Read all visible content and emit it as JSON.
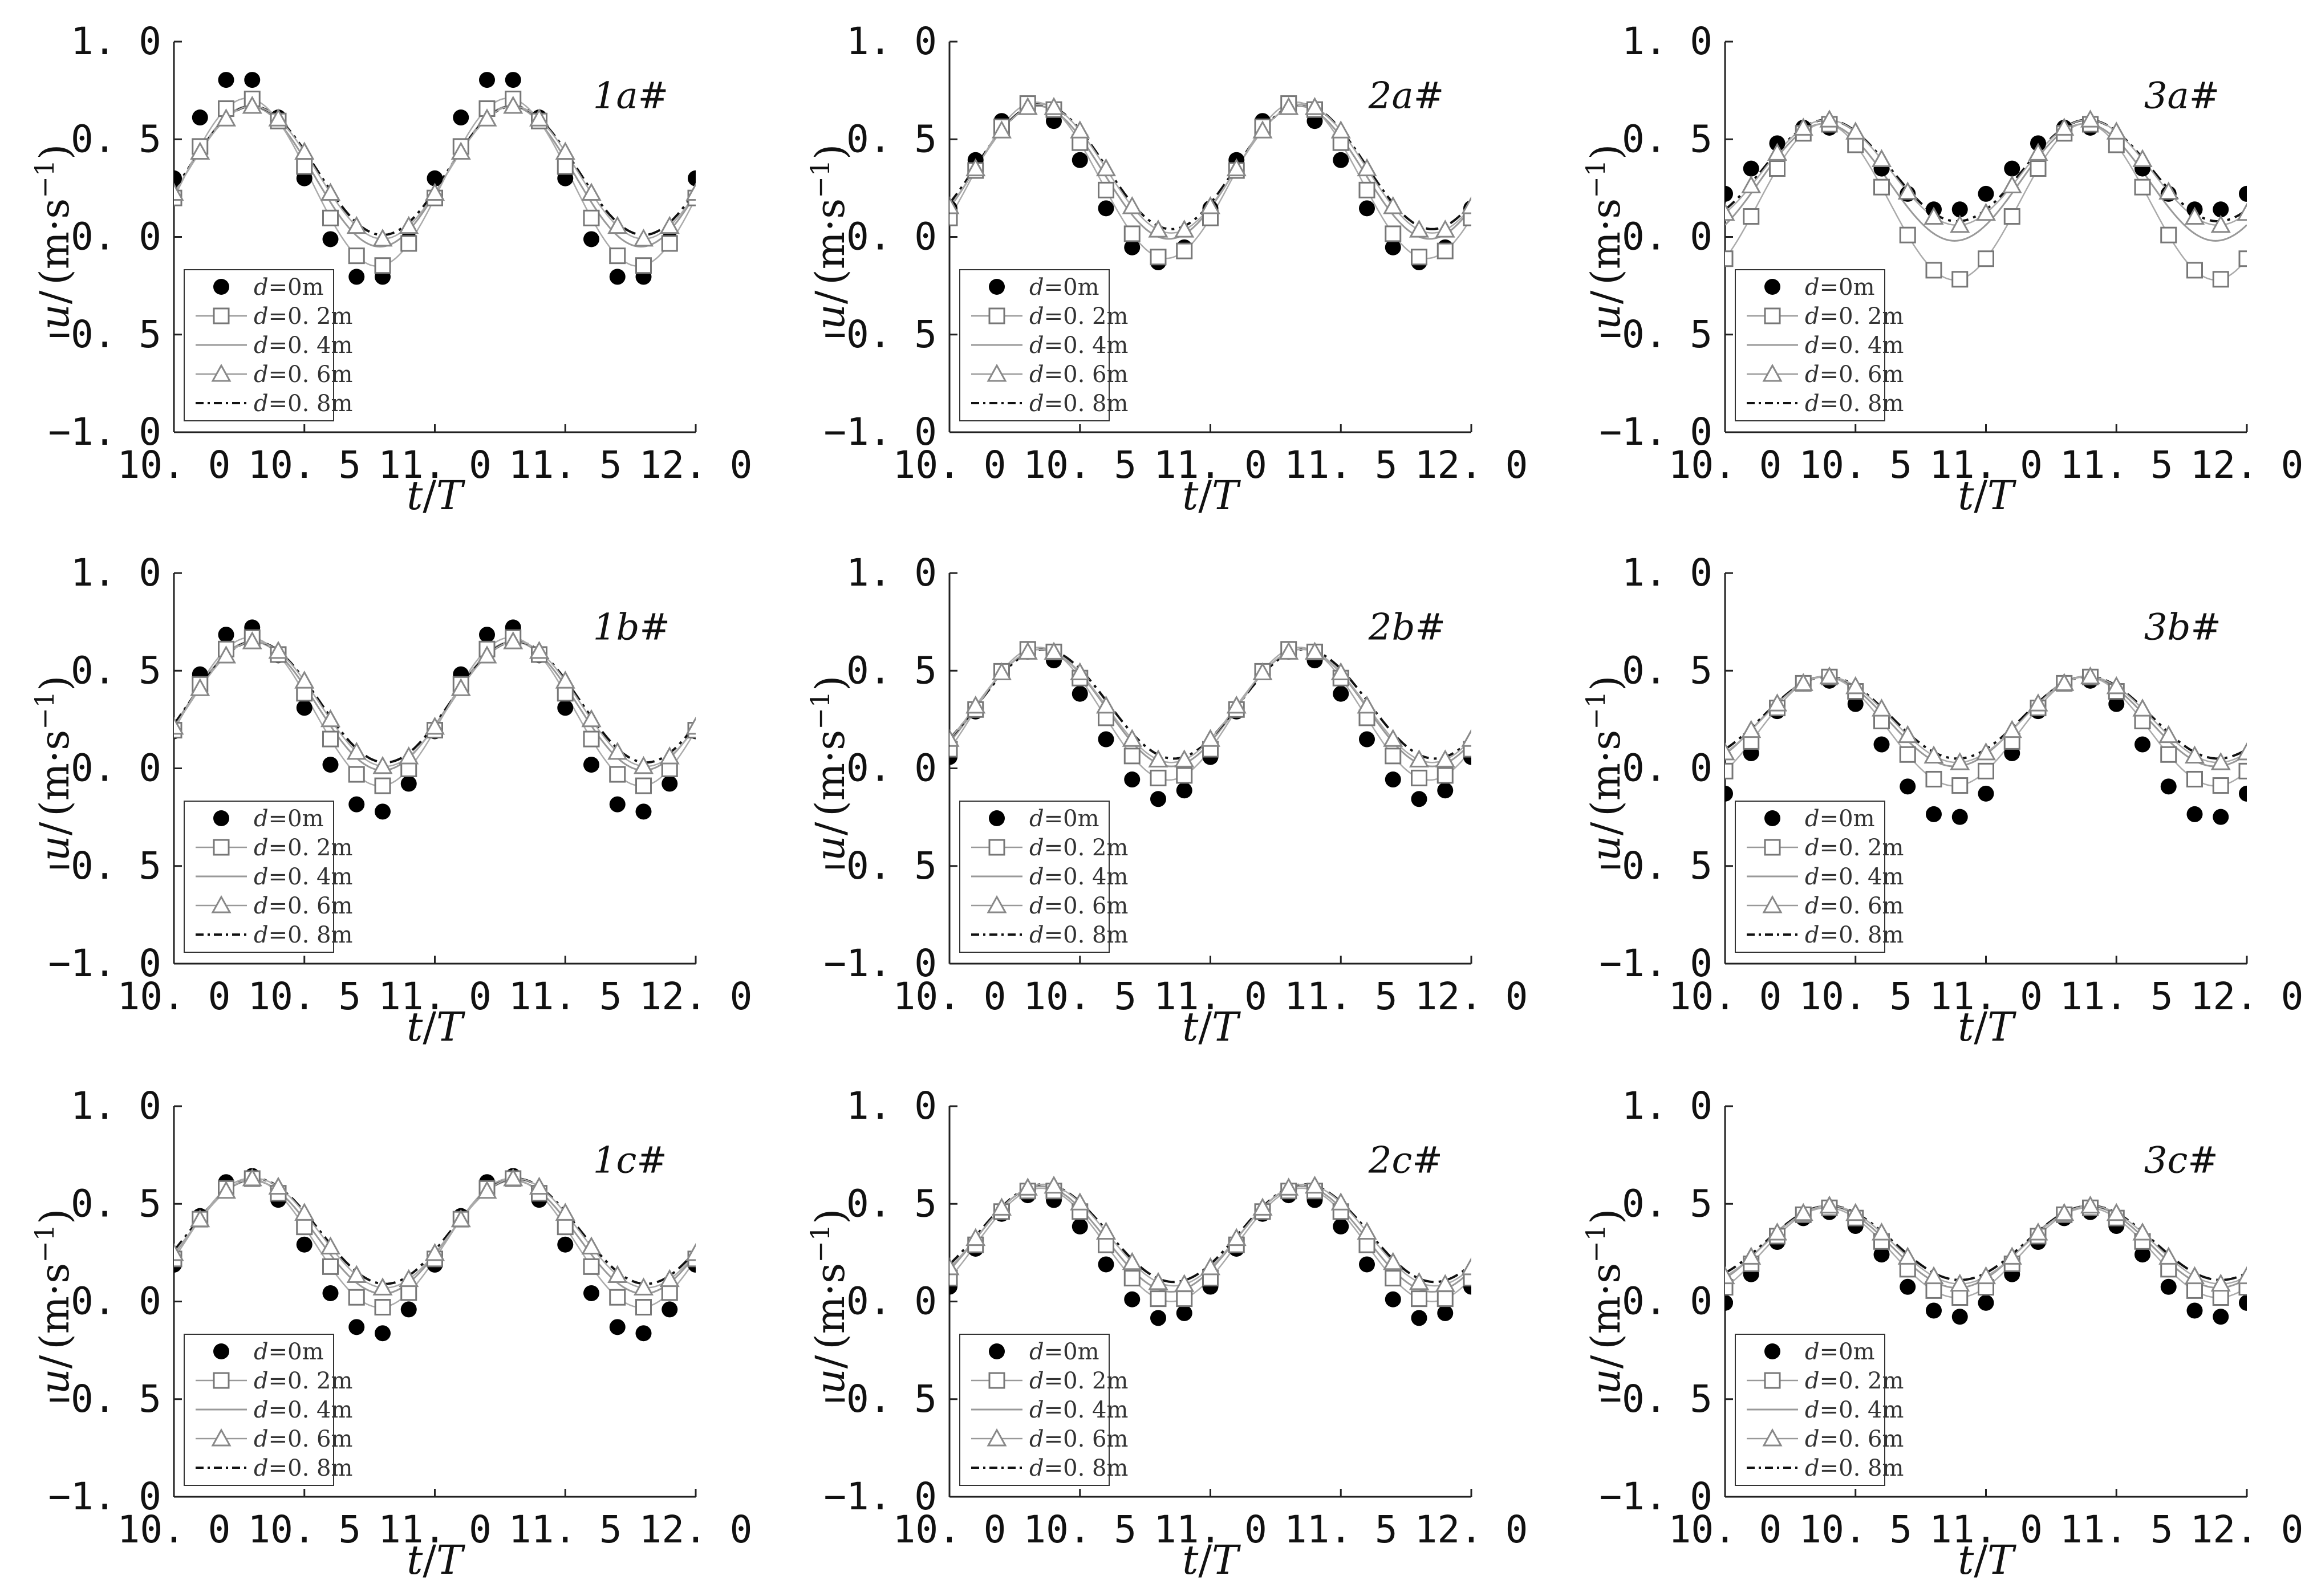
{
  "figure": {
    "x_axis_label_t": "t",
    "x_axis_label_sep": "/",
    "x_axis_label_T": "T",
    "y_axis_label_u": "u",
    "y_axis_label_sep": "/",
    "y_axis_label_unit": "(m·s",
    "y_axis_label_exp": "−1",
    "y_axis_label_close": ")",
    "x_tick_labels": [
      "10. 0",
      "10. 5",
      "11. 0",
      "11. 5",
      "12. 0"
    ],
    "y_tick_labels": [
      "1. 0",
      "0. 5",
      "0. 0",
      "−0. 5",
      "−1. 0"
    ],
    "legend_var": "d",
    "legend_values": [
      "=0m",
      "=0. 2m",
      "=0. 4m",
      "=0. 6m",
      "=0. 8m"
    ]
  },
  "chart_data": [
    {
      "type": "line",
      "panel": "1a#",
      "xlim": [
        10.0,
        12.0
      ],
      "ylim": [
        -1.0,
        1.0
      ],
      "grid": false,
      "legend_position": "bottom-left",
      "series": [
        {
          "name": "d=0m",
          "marker": "filled-circle",
          "amp": 0.53,
          "mean": 0.3,
          "peak_phase": 0.25,
          "points": 20
        },
        {
          "name": "d=0.2m",
          "marker": "open-square",
          "amp": 0.43,
          "mean": 0.28,
          "peak_phase": 0.28,
          "points": 20
        },
        {
          "name": "d=0.4m",
          "marker": "none",
          "line": "solid-thin",
          "amp": 0.36,
          "mean": 0.31,
          "peak_phase": 0.29
        },
        {
          "name": "d=0.6m",
          "marker": "open-triangle",
          "amp": 0.34,
          "mean": 0.33,
          "peak_phase": 0.3,
          "points": 20
        },
        {
          "name": "d=0.8m",
          "marker": "none",
          "line": "dash-dot",
          "amp": 0.33,
          "mean": 0.34,
          "peak_phase": 0.3
        }
      ]
    },
    {
      "type": "line",
      "panel": "2a#",
      "xlim": [
        10.0,
        12.0
      ],
      "ylim": [
        -1.0,
        1.0
      ],
      "grid": false,
      "legend_position": "bottom-left",
      "series": [
        {
          "name": "d=0m",
          "marker": "filled-circle",
          "amp": 0.4,
          "mean": 0.27,
          "peak_phase": 0.3,
          "points": 20
        },
        {
          "name": "d=0.2m",
          "marker": "open-square",
          "amp": 0.4,
          "mean": 0.29,
          "peak_phase": 0.33,
          "points": 20
        },
        {
          "name": "d=0.4m",
          "marker": "none",
          "line": "solid-thin",
          "amp": 0.34,
          "mean": 0.33,
          "peak_phase": 0.34
        },
        {
          "name": "d=0.6m",
          "marker": "open-triangle",
          "amp": 0.33,
          "mean": 0.35,
          "peak_phase": 0.35,
          "points": 20
        },
        {
          "name": "d=0.8m",
          "marker": "none",
          "line": "dash-dot",
          "amp": 0.32,
          "mean": 0.36,
          "peak_phase": 0.35
        }
      ]
    },
    {
      "type": "line",
      "panel": "3a#",
      "xlim": [
        10.0,
        12.0
      ],
      "ylim": [
        -1.0,
        1.0
      ],
      "grid": false,
      "legend_position": "bottom-left",
      "series": [
        {
          "name": "d=0m",
          "marker": "filled-circle",
          "amp": 0.22,
          "mean": 0.35,
          "peak_phase": 0.35,
          "points": 20
        },
        {
          "name": "d=0.2m",
          "marker": "open-square",
          "amp": 0.4,
          "mean": 0.18,
          "peak_phase": 0.38,
          "points": 20
        },
        {
          "name": "d=0.4m",
          "marker": "none",
          "line": "solid-thin",
          "amp": 0.3,
          "mean": 0.28,
          "peak_phase": 0.38
        },
        {
          "name": "d=0.6m",
          "marker": "open-triangle",
          "amp": 0.27,
          "mean": 0.33,
          "peak_phase": 0.39,
          "points": 20
        },
        {
          "name": "d=0.8m",
          "marker": "none",
          "line": "dash-dot",
          "amp": 0.26,
          "mean": 0.34,
          "peak_phase": 0.39
        }
      ]
    },
    {
      "type": "line",
      "panel": "1b#",
      "xlim": [
        10.0,
        12.0
      ],
      "ylim": [
        -1.0,
        1.0
      ],
      "grid": false,
      "legend_position": "bottom-left",
      "series": [
        {
          "name": "d=0m",
          "marker": "filled-circle",
          "amp": 0.48,
          "mean": 0.25,
          "peak_phase": 0.27,
          "points": 20
        },
        {
          "name": "d=0.2m",
          "marker": "open-square",
          "amp": 0.38,
          "mean": 0.29,
          "peak_phase": 0.29,
          "points": 20
        },
        {
          "name": "d=0.4m",
          "marker": "none",
          "line": "solid-thin",
          "amp": 0.33,
          "mean": 0.32,
          "peak_phase": 0.3
        },
        {
          "name": "d=0.6m",
          "marker": "open-triangle",
          "amp": 0.32,
          "mean": 0.33,
          "peak_phase": 0.31,
          "points": 20
        },
        {
          "name": "d=0.8m",
          "marker": "none",
          "line": "dash-dot",
          "amp": 0.31,
          "mean": 0.34,
          "peak_phase": 0.31
        }
      ]
    },
    {
      "type": "line",
      "panel": "2b#",
      "xlim": [
        10.0,
        12.0
      ],
      "ylim": [
        -1.0,
        1.0
      ],
      "grid": false,
      "legend_position": "bottom-left",
      "series": [
        {
          "name": "d=0m",
          "marker": "filled-circle",
          "amp": 0.38,
          "mean": 0.22,
          "peak_phase": 0.32,
          "points": 20
        },
        {
          "name": "d=0.2m",
          "marker": "open-square",
          "amp": 0.34,
          "mean": 0.28,
          "peak_phase": 0.34,
          "points": 20
        },
        {
          "name": "d=0.4m",
          "marker": "none",
          "line": "solid-thin",
          "amp": 0.3,
          "mean": 0.31,
          "peak_phase": 0.35
        },
        {
          "name": "d=0.6m",
          "marker": "open-triangle",
          "amp": 0.29,
          "mean": 0.32,
          "peak_phase": 0.35,
          "points": 20
        },
        {
          "name": "d=0.8m",
          "marker": "none",
          "line": "dash-dot",
          "amp": 0.28,
          "mean": 0.33,
          "peak_phase": 0.36
        }
      ]
    },
    {
      "type": "line",
      "panel": "3b#",
      "xlim": [
        10.0,
        12.0
      ],
      "ylim": [
        -1.0,
        1.0
      ],
      "grid": false,
      "legend_position": "bottom-left",
      "series": [
        {
          "name": "d=0m",
          "marker": "filled-circle",
          "amp": 0.36,
          "mean": 0.1,
          "peak_phase": 0.36,
          "points": 20
        },
        {
          "name": "d=0.2m",
          "marker": "open-square",
          "amp": 0.28,
          "mean": 0.19,
          "peak_phase": 0.38,
          "points": 20
        },
        {
          "name": "d=0.4m",
          "marker": "none",
          "line": "solid-thin",
          "amp": 0.23,
          "mean": 0.24,
          "peak_phase": 0.38
        },
        {
          "name": "d=0.6m",
          "marker": "open-triangle",
          "amp": 0.22,
          "mean": 0.25,
          "peak_phase": 0.39,
          "points": 20
        },
        {
          "name": "d=0.8m",
          "marker": "none",
          "line": "dash-dot",
          "amp": 0.21,
          "mean": 0.26,
          "peak_phase": 0.39
        }
      ]
    },
    {
      "type": "line",
      "panel": "1c#",
      "xlim": [
        10.0,
        12.0
      ],
      "ylim": [
        -1.0,
        1.0
      ],
      "grid": false,
      "legend_position": "bottom-left",
      "series": [
        {
          "name": "d=0m",
          "marker": "filled-circle",
          "amp": 0.41,
          "mean": 0.24,
          "peak_phase": 0.27,
          "points": 20
        },
        {
          "name": "d=0.2m",
          "marker": "open-square",
          "amp": 0.33,
          "mean": 0.3,
          "peak_phase": 0.29,
          "points": 20
        },
        {
          "name": "d=0.4m",
          "marker": "none",
          "line": "solid-thin",
          "amp": 0.29,
          "mean": 0.33,
          "peak_phase": 0.3
        },
        {
          "name": "d=0.6m",
          "marker": "open-triangle",
          "amp": 0.28,
          "mean": 0.35,
          "peak_phase": 0.31,
          "points": 20
        },
        {
          "name": "d=0.8m",
          "marker": "none",
          "line": "dash-dot",
          "amp": 0.27,
          "mean": 0.36,
          "peak_phase": 0.31
        }
      ]
    },
    {
      "type": "line",
      "panel": "2c#",
      "xlim": [
        10.0,
        12.0
      ],
      "ylim": [
        -1.0,
        1.0
      ],
      "grid": false,
      "legend_position": "bottom-left",
      "series": [
        {
          "name": "d=0m",
          "marker": "filled-circle",
          "amp": 0.32,
          "mean": 0.23,
          "peak_phase": 0.33,
          "points": 20
        },
        {
          "name": "d=0.2m",
          "marker": "open-square",
          "amp": 0.29,
          "mean": 0.29,
          "peak_phase": 0.35,
          "points": 20
        },
        {
          "name": "d=0.4m",
          "marker": "none",
          "line": "solid-thin",
          "amp": 0.27,
          "mean": 0.32,
          "peak_phase": 0.35
        },
        {
          "name": "d=0.6m",
          "marker": "open-triangle",
          "amp": 0.26,
          "mean": 0.34,
          "peak_phase": 0.36,
          "points": 20
        },
        {
          "name": "d=0.8m",
          "marker": "none",
          "line": "dash-dot",
          "amp": 0.25,
          "mean": 0.35,
          "peak_phase": 0.36
        }
      ]
    },
    {
      "type": "line",
      "panel": "3c#",
      "xlim": [
        10.0,
        12.0
      ],
      "ylim": [
        -1.0,
        1.0
      ],
      "grid": false,
      "legend_position": "bottom-left",
      "series": [
        {
          "name": "d=0m",
          "marker": "filled-circle",
          "amp": 0.27,
          "mean": 0.19,
          "peak_phase": 0.38,
          "points": 20
        },
        {
          "name": "d=0.2m",
          "marker": "open-square",
          "amp": 0.23,
          "mean": 0.25,
          "peak_phase": 0.39,
          "points": 20
        },
        {
          "name": "d=0.4m",
          "marker": "none",
          "line": "solid-thin",
          "amp": 0.21,
          "mean": 0.28,
          "peak_phase": 0.39
        },
        {
          "name": "d=0.6m",
          "marker": "open-triangle",
          "amp": 0.2,
          "mean": 0.29,
          "peak_phase": 0.4,
          "points": 20
        },
        {
          "name": "d=0.8m",
          "marker": "none",
          "line": "dash-dot",
          "amp": 0.19,
          "mean": 0.3,
          "peak_phase": 0.4
        }
      ]
    }
  ]
}
